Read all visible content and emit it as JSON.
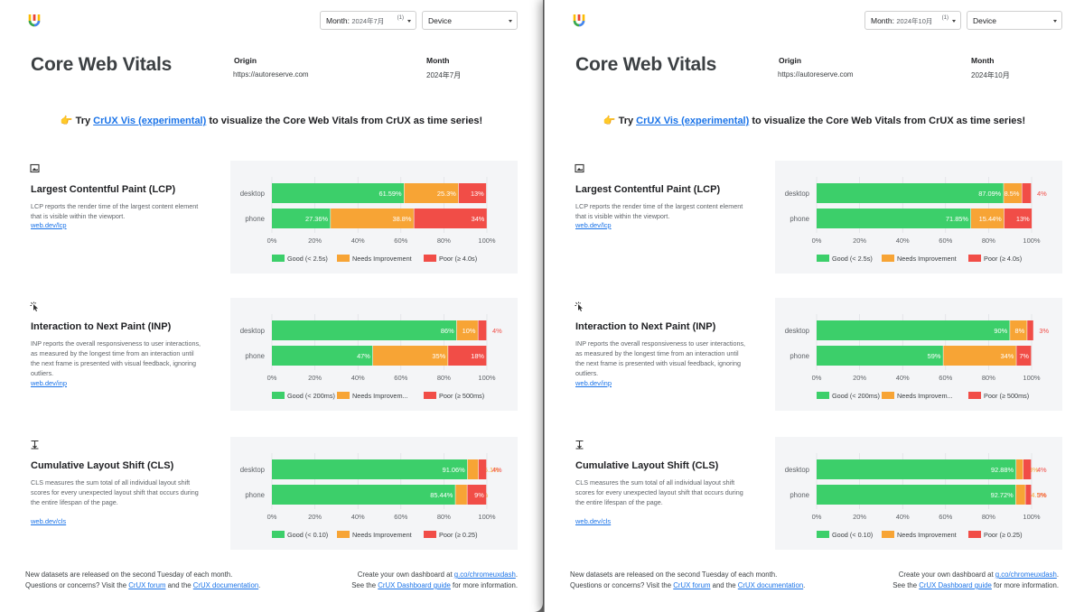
{
  "colors": {
    "good": "#3ccf6a",
    "needs": "#f7a435",
    "poor": "#f14d47",
    "link": "#1a73e8"
  },
  "panels": [
    {
      "month_select": {
        "label": "Month:",
        "value": "2024年7月",
        "count": "(1)"
      },
      "device_select": {
        "label": "Device"
      },
      "title": "Core Web Vitals",
      "origin_label": "Origin",
      "origin_value": "https://autoreserve.com",
      "month_label": "Month",
      "month_value": "2024年7月",
      "promo": {
        "prefix": "👉 Try ",
        "link": "CrUX Vis (experimental)",
        "suffix": " to visualize the Core Web Vitals from CrUX as time series!"
      },
      "metrics": [
        {
          "icon": "lcp-image-icon",
          "title": "Largest Contentful Paint (LCP)",
          "description": "LCP reports the render time of the largest content element that is visible within the viewport.",
          "link": "web.dev/lcp"
        },
        {
          "icon": "inp-pointer-icon",
          "title": "Interaction to Next Paint (INP)",
          "description": "INP reports the overall responsiveness to user interactions, as measured by the longest time from an interaction until the next frame is presented with visual feedback, ignoring outliers.",
          "link": "web.dev/inp"
        },
        {
          "icon": "cls-shift-icon",
          "title": "Cumulative Layout Shift (CLS)",
          "description": "CLS measures the sum total of all individual layout shift scores for every unexpected layout shift that occurs during the entire lifespan of the page.",
          "link": "web.dev/cls"
        }
      ],
      "footer": {
        "line1": "New datasets are released on the second Tuesday of each month.",
        "line2_prefix": "Questions or concerns? Visit the ",
        "forum_link": "CrUX forum",
        "line2_mid": " and the ",
        "docs_link": "CrUX documentation",
        "line2_suffix": ".",
        "right1_prefix": "Create your own dashboard at ",
        "right1_link": "g.co/chromeuxdash",
        "right1_suffix": ".",
        "right2_prefix": "See the ",
        "right2_link": "CrUX Dashboard guide",
        "right2_suffix": " for more information."
      }
    },
    {
      "month_select": {
        "label": "Month:",
        "value": "2024年10月",
        "count": "(1)"
      },
      "device_select": {
        "label": "Device"
      },
      "title": "Core Web Vitals",
      "origin_label": "Origin",
      "origin_value": "https://autoreserve.com",
      "month_label": "Month",
      "month_value": "2024年10月",
      "promo": {
        "prefix": "👉 Try ",
        "link": "CrUX Vis (experimental)",
        "suffix": " to visualize the Core Web Vitals from CrUX as time series!"
      },
      "metrics": [
        {
          "icon": "lcp-image-icon",
          "title": "Largest Contentful Paint (LCP)",
          "description": "LCP reports the render time of the largest content element that is visible within the viewport.",
          "link": "web.dev/lcp"
        },
        {
          "icon": "inp-pointer-icon",
          "title": "Interaction to Next Paint (INP)",
          "description": "INP reports the overall responsiveness to user interactions, as measured by the longest time from an interaction until the next frame is presented with visual feedback, ignoring outliers.",
          "link": "web.dev/inp"
        },
        {
          "icon": "cls-shift-icon",
          "title": "Cumulative Layout Shift (CLS)",
          "description": "CLS measures the sum total of all individual layout shift scores for every unexpected layout shift that occurs during the entire lifespan of the page.",
          "link": "web.dev/cls"
        }
      ],
      "footer": {
        "line1": "New datasets are released on the second Tuesday of each month.",
        "line2_prefix": "Questions or concerns? Visit the ",
        "forum_link": "CrUX forum",
        "line2_mid": " and the ",
        "docs_link": "CrUX documentation",
        "line2_suffix": ".",
        "right1_prefix": "Create your own dashboard at ",
        "right1_link": "g.co/chromeuxdash",
        "right1_suffix": ".",
        "right2_prefix": "See the ",
        "right2_link": "CrUX Dashboard guide",
        "right2_suffix": " for more information."
      }
    }
  ],
  "chart_data": [
    {
      "type": "bar",
      "orientation": "horizontal",
      "stacked": true,
      "panel": "2024年7月",
      "metric": "LCP",
      "categories": [
        "desktop",
        "phone"
      ],
      "series": [
        {
          "name": "Good (< 2.5s)",
          "values": [
            61.59,
            27.36
          ],
          "labels": [
            "61.59%",
            "27.36%"
          ]
        },
        {
          "name": "Needs Improvement",
          "values": [
            25.3,
            38.8
          ],
          "labels": [
            "25.3%",
            "38.8%"
          ]
        },
        {
          "name": "Poor (≥ 4.0s)",
          "values": [
            13,
            34
          ],
          "labels": [
            "13%",
            "34%"
          ]
        }
      ],
      "xticks": [
        "0%",
        "20%",
        "40%",
        "60%",
        "80%",
        "100%"
      ],
      "xlim": [
        0,
        100
      ]
    },
    {
      "type": "bar",
      "orientation": "horizontal",
      "stacked": true,
      "panel": "2024年7月",
      "metric": "INP",
      "categories": [
        "desktop",
        "phone"
      ],
      "series": [
        {
          "name": "Good (< 200ms)",
          "values": [
            86,
            47
          ],
          "labels": [
            "86%",
            "47%"
          ]
        },
        {
          "name": "Needs Improvem...",
          "values": [
            10,
            35
          ],
          "labels": [
            "10%",
            "35%"
          ]
        },
        {
          "name": "Poor (≥ 500ms)",
          "values": [
            4,
            18
          ],
          "labels": [
            "4%",
            "18%"
          ]
        }
      ],
      "xticks": [
        "0%",
        "20%",
        "40%",
        "60%",
        "80%",
        "100%"
      ],
      "xlim": [
        0,
        100
      ]
    },
    {
      "type": "bar",
      "orientation": "horizontal",
      "stacked": true,
      "panel": "2024年7月",
      "metric": "CLS",
      "categories": [
        "desktop",
        "phone"
      ],
      "series": [
        {
          "name": "Good (< 0.10)",
          "values": [
            91.06,
            85.44
          ],
          "labels": [
            "91.06%",
            "85.44%"
          ]
        },
        {
          "name": "Needs Improvement",
          "values": [
            5.1,
            5.5
          ],
          "labels": [
            "5.1%",
            "5.5%"
          ]
        },
        {
          "name": "Poor (≥ 0.25)",
          "values": [
            3.8,
            9
          ],
          "labels": [
            "4%",
            "9%"
          ]
        }
      ],
      "xticks": [
        "0%",
        "20%",
        "40%",
        "60%",
        "80%",
        "100%"
      ],
      "xlim": [
        0,
        100
      ]
    },
    {
      "type": "bar",
      "orientation": "horizontal",
      "stacked": true,
      "panel": "2024年10月",
      "metric": "LCP",
      "categories": [
        "desktop",
        "phone"
      ],
      "series": [
        {
          "name": "Good (< 2.5s)",
          "values": [
            87.09,
            71.85
          ],
          "labels": [
            "87.09%",
            "71.85%"
          ]
        },
        {
          "name": "Needs Improvement",
          "values": [
            8.5,
            15.44
          ],
          "labels": [
            "8.5%",
            "15.44%"
          ]
        },
        {
          "name": "Poor (≥ 4.0s)",
          "values": [
            4.4,
            13
          ],
          "labels": [
            "4%",
            "13%"
          ]
        }
      ],
      "xticks": [
        "0%",
        "20%",
        "40%",
        "60%",
        "80%",
        "100%"
      ],
      "xlim": [
        0,
        100
      ]
    },
    {
      "type": "bar",
      "orientation": "horizontal",
      "stacked": true,
      "panel": "2024年10月",
      "metric": "INP",
      "categories": [
        "desktop",
        "phone"
      ],
      "series": [
        {
          "name": "Good (< 200ms)",
          "values": [
            90,
            59
          ],
          "labels": [
            "90%",
            "59%"
          ]
        },
        {
          "name": "Needs Improvem...",
          "values": [
            8,
            34
          ],
          "labels": [
            "8%",
            "34%"
          ]
        },
        {
          "name": "Poor (≥ 500ms)",
          "values": [
            3,
            7
          ],
          "labels": [
            "3%",
            "7%"
          ]
        }
      ],
      "xticks": [
        "0%",
        "20%",
        "40%",
        "60%",
        "80%",
        "100%"
      ],
      "xlim": [
        0,
        100
      ]
    },
    {
      "type": "bar",
      "orientation": "horizontal",
      "stacked": true,
      "panel": "2024年10月",
      "metric": "CLS",
      "categories": [
        "desktop",
        "phone"
      ],
      "series": [
        {
          "name": "Good (< 0.10)",
          "values": [
            92.88,
            92.72
          ],
          "labels": [
            "92.88%",
            "92.72%"
          ]
        },
        {
          "name": "Needs Improvement",
          "values": [
            3.3,
            4.5
          ],
          "labels": [
            "3%",
            "4.5%"
          ]
        },
        {
          "name": "Poor (≥ 0.25)",
          "values": [
            3.8,
            2.8
          ],
          "labels": [
            "4%",
            "3%"
          ]
        }
      ],
      "xticks": [
        "0%",
        "20%",
        "40%",
        "60%",
        "80%",
        "100%"
      ],
      "xlim": [
        0,
        100
      ]
    }
  ]
}
